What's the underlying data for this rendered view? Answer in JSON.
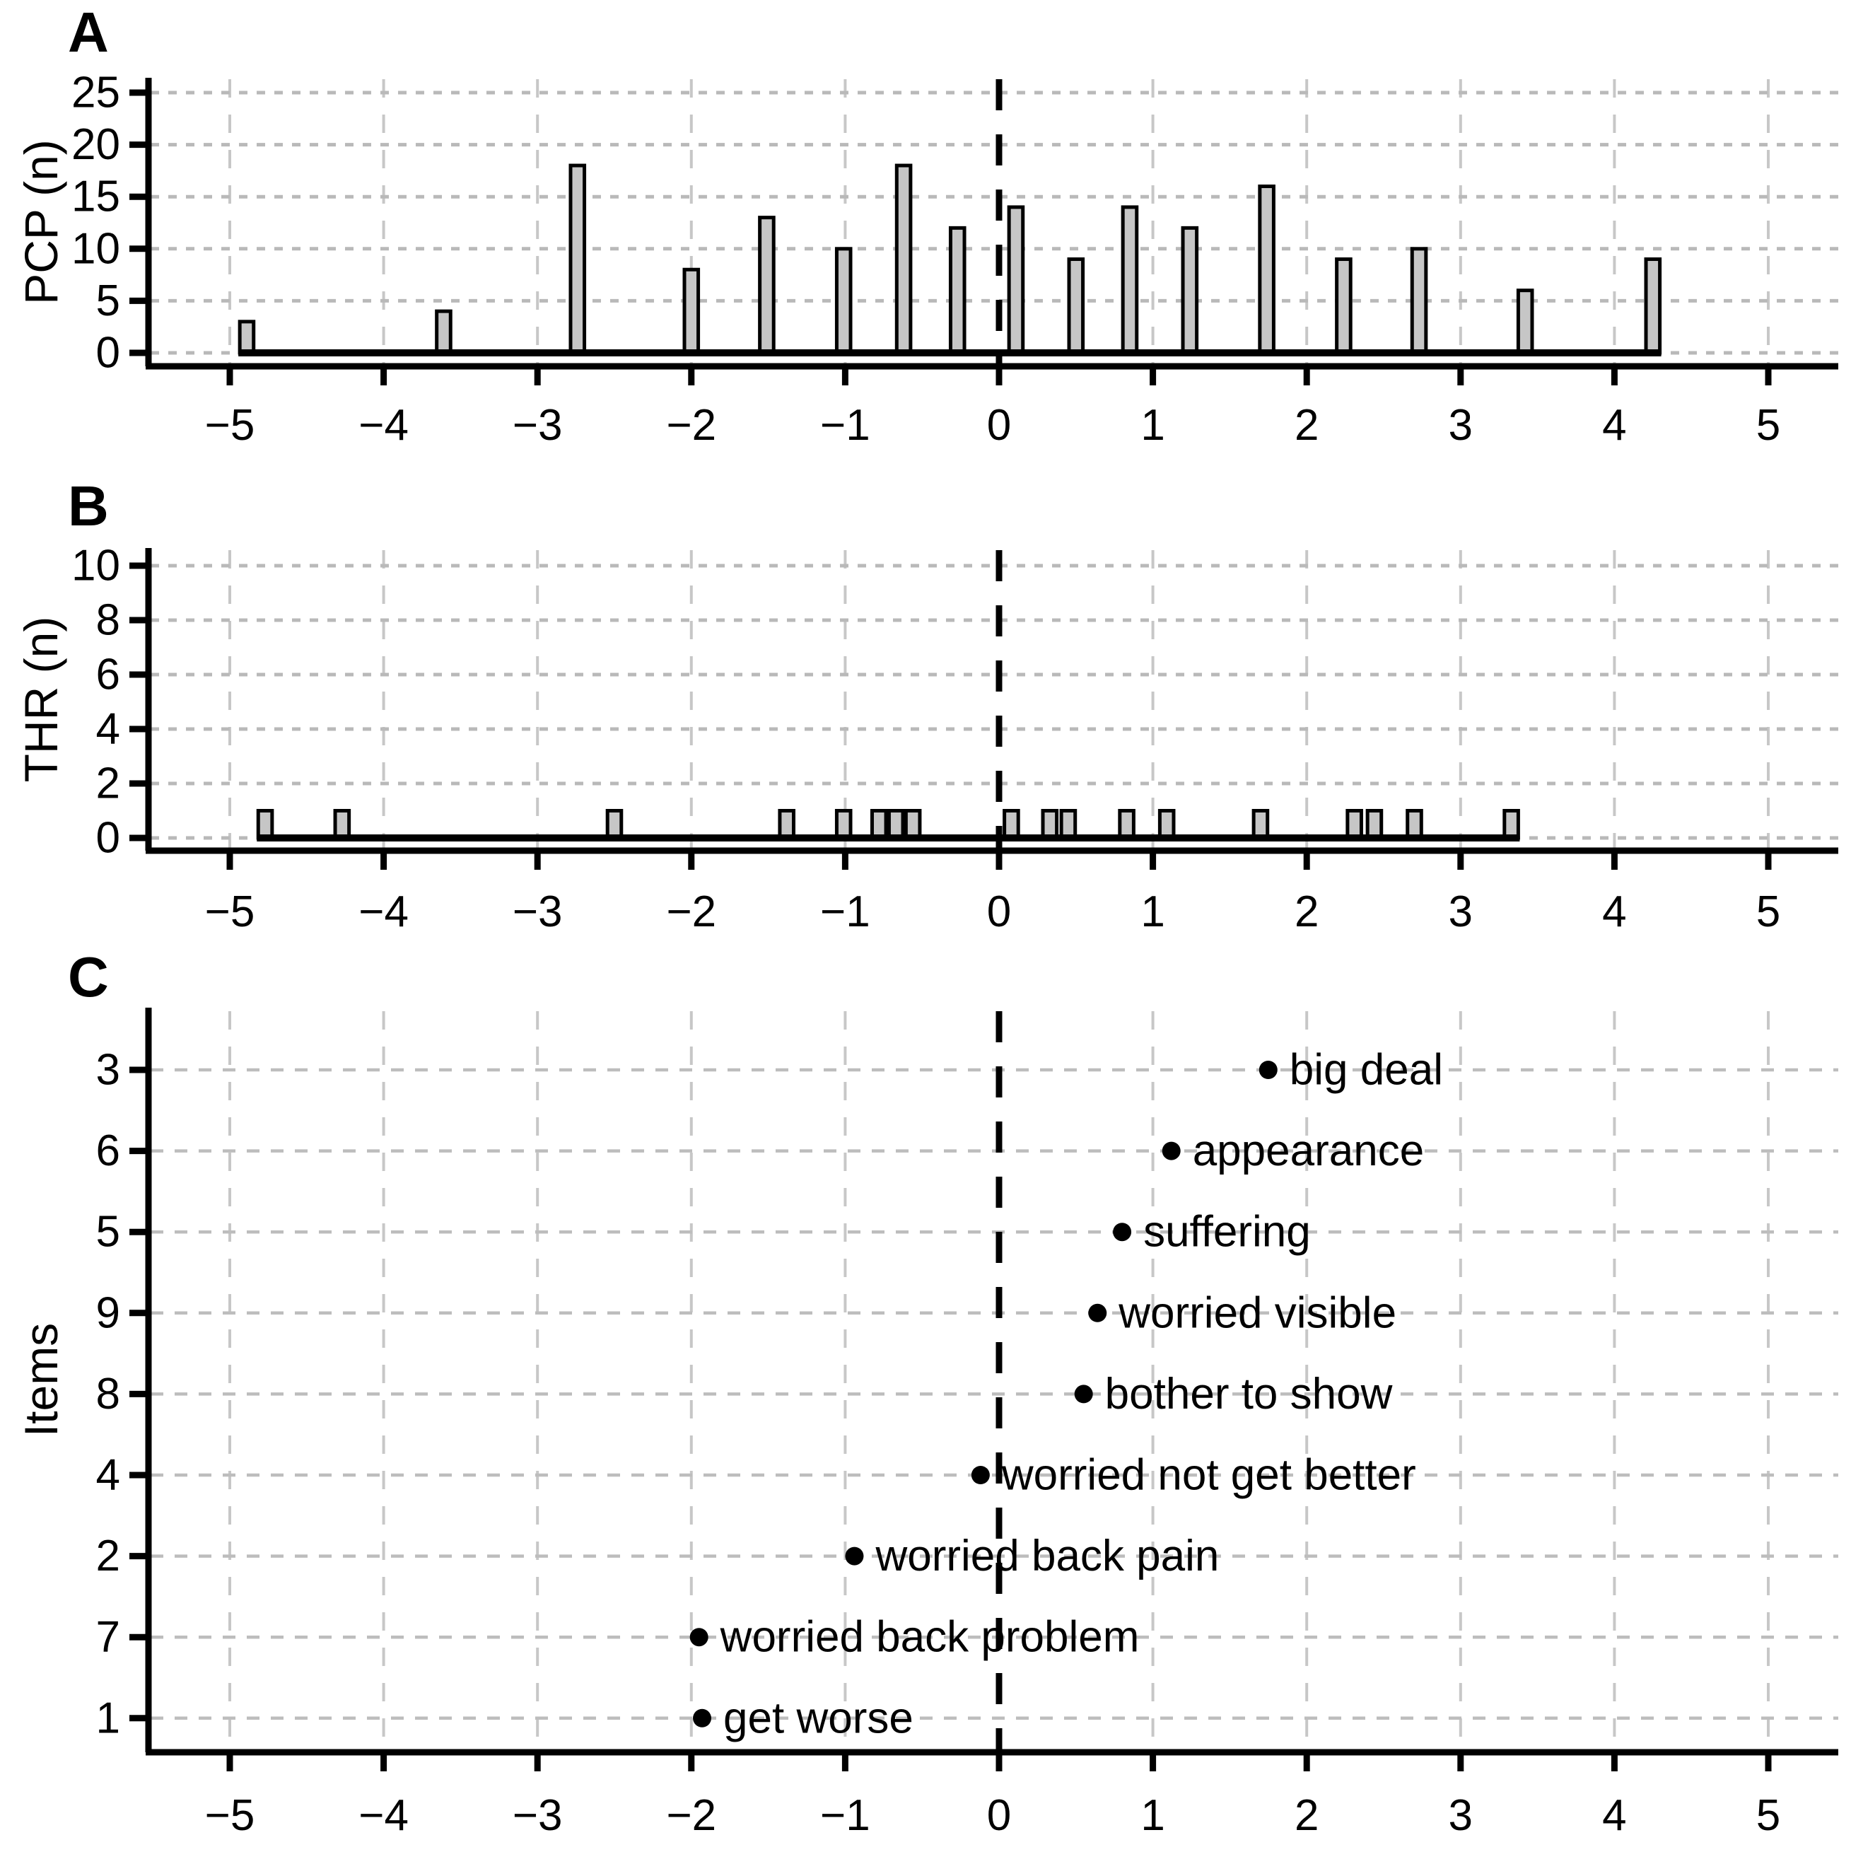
{
  "figure": {
    "panels": [
      {
        "letter": "A"
      },
      {
        "letter": "B"
      },
      {
        "letter": "C"
      }
    ]
  },
  "chart_data": [
    {
      "panel": "A",
      "type": "bar",
      "title": "",
      "xlabel": "",
      "ylabel": "PCP (n)",
      "ylim": [
        0,
        25
      ],
      "yticks": [
        0,
        5,
        10,
        15,
        20,
        25
      ],
      "xlim": [
        -5.5,
        5.5
      ],
      "xticks": [
        -5,
        -4,
        -3,
        -2,
        -1,
        0,
        1,
        2,
        3,
        4,
        5
      ],
      "grid": "dashed",
      "zero_reference_line": 0,
      "bar_width_units": 0.09,
      "bar_fill": "#c6c6c6",
      "bars": [
        {
          "x": -4.89,
          "n": 3
        },
        {
          "x": -3.61,
          "n": 4
        },
        {
          "x": -2.74,
          "n": 18
        },
        {
          "x": -2.0,
          "n": 8
        },
        {
          "x": -1.51,
          "n": 13
        },
        {
          "x": -1.01,
          "n": 10
        },
        {
          "x": -0.62,
          "n": 18
        },
        {
          "x": -0.27,
          "n": 12
        },
        {
          "x": 0.11,
          "n": 14
        },
        {
          "x": 0.5,
          "n": 9
        },
        {
          "x": 0.85,
          "n": 14
        },
        {
          "x": 1.24,
          "n": 12
        },
        {
          "x": 1.74,
          "n": 16
        },
        {
          "x": 2.24,
          "n": 9
        },
        {
          "x": 2.73,
          "n": 10
        },
        {
          "x": 3.42,
          "n": 6
        },
        {
          "x": 4.25,
          "n": 9
        }
      ]
    },
    {
      "panel": "B",
      "type": "bar",
      "title": "",
      "xlabel": "",
      "ylabel": "THR (n)",
      "ylim": [
        0,
        10
      ],
      "yticks": [
        0,
        2,
        4,
        6,
        8,
        10
      ],
      "xlim": [
        -5.5,
        5.5
      ],
      "xticks": [
        -5,
        -4,
        -3,
        -2,
        -1,
        0,
        1,
        2,
        3,
        4,
        5
      ],
      "grid": "dashed",
      "zero_reference_line": 0,
      "bar_width_units": 0.09,
      "bar_fill": "#c6c6c6",
      "bars": [
        {
          "x": -4.77,
          "n": 1
        },
        {
          "x": -4.27,
          "n": 1
        },
        {
          "x": -2.5,
          "n": 1
        },
        {
          "x": -1.38,
          "n": 1
        },
        {
          "x": -1.01,
          "n": 1
        },
        {
          "x": -0.78,
          "n": 1
        },
        {
          "x": -0.67,
          "n": 1
        },
        {
          "x": -0.56,
          "n": 1
        },
        {
          "x": 0.08,
          "n": 1
        },
        {
          "x": 0.33,
          "n": 1
        },
        {
          "x": 0.45,
          "n": 1
        },
        {
          "x": 0.83,
          "n": 1
        },
        {
          "x": 1.09,
          "n": 1
        },
        {
          "x": 1.7,
          "n": 1
        },
        {
          "x": 2.31,
          "n": 1
        },
        {
          "x": 2.44,
          "n": 1
        },
        {
          "x": 2.7,
          "n": 1
        },
        {
          "x": 3.33,
          "n": 1
        }
      ]
    },
    {
      "panel": "C",
      "type": "scatter",
      "title": "",
      "xlabel": "",
      "ylabel": "Items",
      "yticks": [
        3,
        6,
        5,
        9,
        8,
        4,
        2,
        7,
        1
      ],
      "xlim": [
        -5.5,
        5.5
      ],
      "xticks": [
        -5,
        -4,
        -3,
        -2,
        -1,
        0,
        1,
        2,
        3,
        4,
        5
      ],
      "grid": "dashed",
      "zero_reference_line": 0,
      "points": [
        {
          "item": 3,
          "label": "big deal",
          "x": 1.75
        },
        {
          "item": 6,
          "label": "appearance",
          "x": 1.12
        },
        {
          "item": 5,
          "label": "suffering",
          "x": 0.8
        },
        {
          "item": 9,
          "label": "worried visible",
          "x": 0.64
        },
        {
          "item": 8,
          "label": "bother to show",
          "x": 0.55
        },
        {
          "item": 4,
          "label": "worried not get better",
          "x": -0.12
        },
        {
          "item": 2,
          "label": "worried back pain",
          "x": -0.94
        },
        {
          "item": 7,
          "label": "worried back problem",
          "x": -1.95
        },
        {
          "item": 1,
          "label": "get worse",
          "x": -1.93
        }
      ]
    }
  ]
}
